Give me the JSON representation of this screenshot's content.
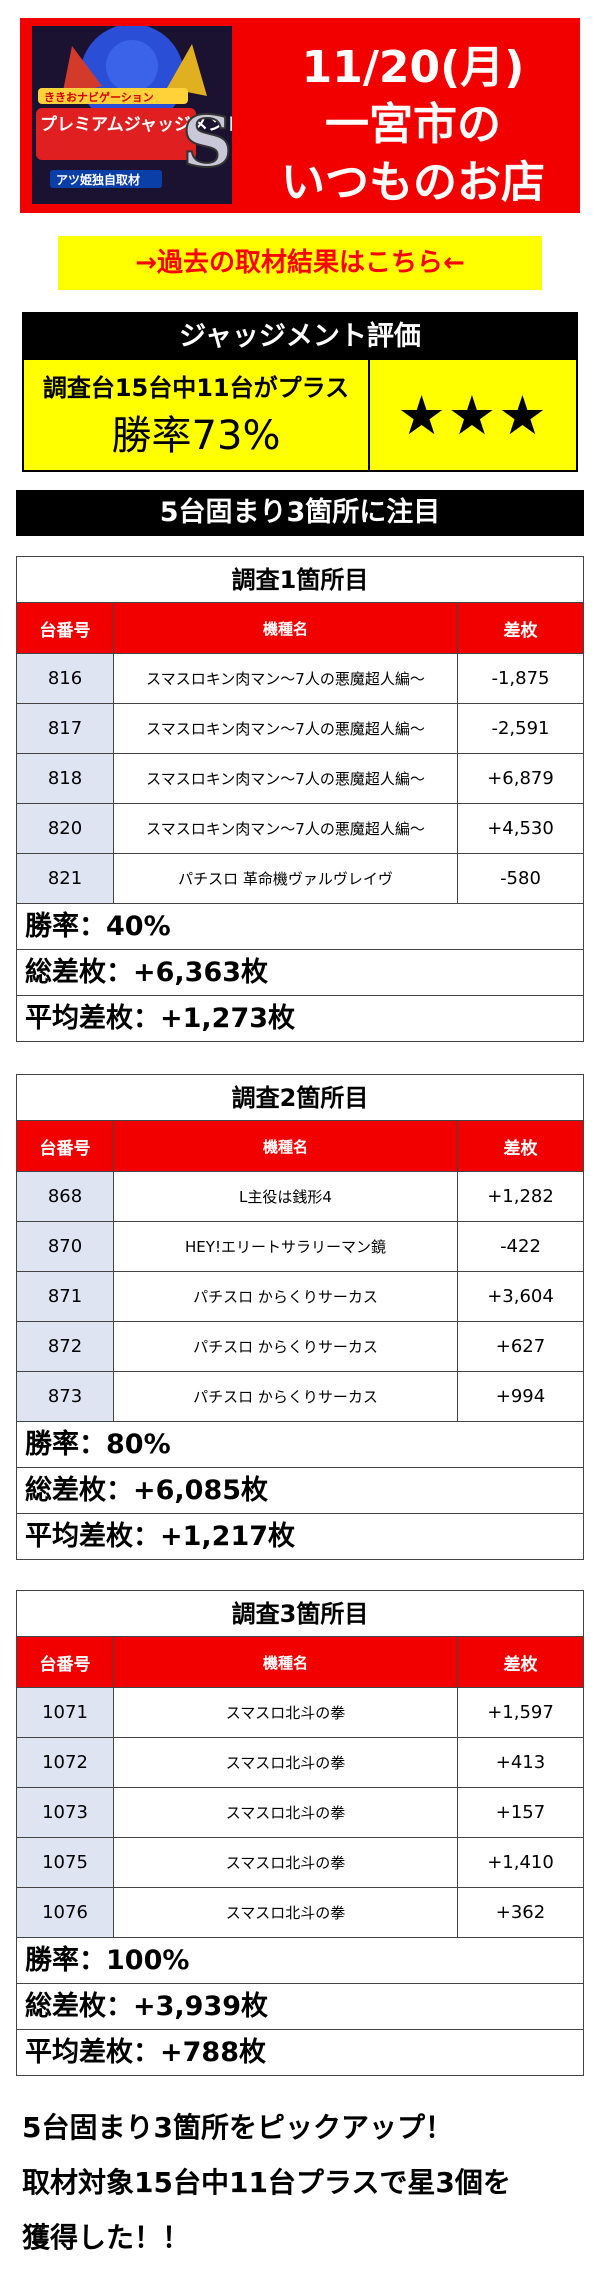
{
  "header": {
    "logo_top_text": "ききおナビゲーション",
    "logo_main_text": "プレミアムジャッジメント",
    "logo_letter": "S",
    "logo_sub_text": "アツ姫独自取材",
    "date": "11/20(月)",
    "line1": "一宮市の",
    "line2": "いつものお店"
  },
  "link": {
    "label": "→過去の取材結果はこちら←"
  },
  "judgment": {
    "title": "ジャッジメント評価",
    "summary": "調査台15台中11台がプラス",
    "win_rate": "勝率73%",
    "stars": "★★★"
  },
  "section": {
    "title": "5台固まり3箇所に注目"
  },
  "surveys": [
    {
      "title": "調査1箇所目",
      "headers": [
        "台番号",
        "機種名",
        "差枚"
      ],
      "rows": [
        {
          "num": "816",
          "name": "スマスロキン肉マン～7人の悪魔超人編～",
          "diff": "-1,875"
        },
        {
          "num": "817",
          "name": "スマスロキン肉マン～7人の悪魔超人編～",
          "diff": "-2,591"
        },
        {
          "num": "818",
          "name": "スマスロキン肉マン～7人の悪魔超人編～",
          "diff": "+6,879"
        },
        {
          "num": "820",
          "name": "スマスロキン肉マン～7人の悪魔超人編～",
          "diff": "+4,530"
        },
        {
          "num": "821",
          "name": "パチスロ 革命機ヴァルヴレイヴ",
          "diff": "-580"
        }
      ],
      "win_rate": "勝率：40%",
      "total": "総差枚：+6,363枚",
      "average": "平均差枚：+1,273枚"
    },
    {
      "title": "調査2箇所目",
      "headers": [
        "台番号",
        "機種名",
        "差枚"
      ],
      "rows": [
        {
          "num": "868",
          "name": "L主役は銭形4",
          "diff": "+1,282"
        },
        {
          "num": "870",
          "name": "HEY!エリートサラリーマン鏡",
          "diff": "-422"
        },
        {
          "num": "871",
          "name": "パチスロ からくりサーカス",
          "diff": "+3,604"
        },
        {
          "num": "872",
          "name": "パチスロ からくりサーカス",
          "diff": "+627"
        },
        {
          "num": "873",
          "name": "パチスロ からくりサーカス",
          "diff": "+994"
        }
      ],
      "win_rate": "勝率：80%",
      "total": "総差枚：+6,085枚",
      "average": "平均差枚：+1,217枚"
    },
    {
      "title": "調査3箇所目",
      "headers": [
        "台番号",
        "機種名",
        "差枚"
      ],
      "rows": [
        {
          "num": "1071",
          "name": "スマスロ北斗の拳",
          "diff": "+1,597"
        },
        {
          "num": "1072",
          "name": "スマスロ北斗の拳",
          "diff": "+413"
        },
        {
          "num": "1073",
          "name": "スマスロ北斗の拳",
          "diff": "+157"
        },
        {
          "num": "1075",
          "name": "スマスロ北斗の拳",
          "diff": "+1,410"
        },
        {
          "num": "1076",
          "name": "スマスロ北斗の拳",
          "diff": "+362"
        }
      ],
      "win_rate": "勝率：100%",
      "total": "総差枚：+3,939枚",
      "average": "平均差枚：+788枚"
    }
  ],
  "footer": {
    "line1": "5台固まり3箇所をピックアップ！",
    "line2": "取材対象15台中11台プラスで星3個を",
    "line3": "獲得した！！"
  },
  "colors": {
    "banner_red": "#f20000",
    "link_yellow": "#ffff00",
    "link_text_red": "#ff0000",
    "table_header_red": "#f20000",
    "number_cell_blue": "#dfe4f3"
  }
}
